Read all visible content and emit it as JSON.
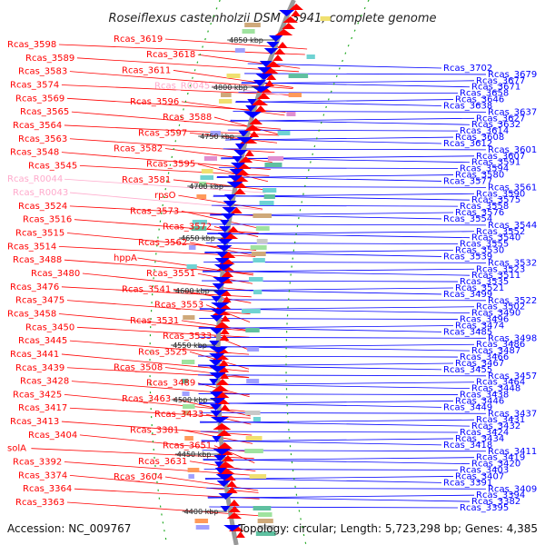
{
  "title": "Roseiflexus castenholzii DSM 13941, complete genome",
  "footer": {
    "accession": "Accession: NC_009767",
    "summary": "Topology: circular; Length: 5,723,298 bp; Genes: 4,385"
  },
  "colors": {
    "forward": "#ff0000",
    "reverse": "#0000ff",
    "rna": "#ffaacc",
    "backbone": "#999999"
  },
  "kbp_ticks": [
    "4850 kbp",
    "4800 kbp",
    "4750 kbp",
    "4700 kbp",
    "4650 kbp",
    "4600 kbp",
    "4550 kbp",
    "4500 kbp",
    "4450 kbp",
    "4400 kbp"
  ],
  "left_labels": [
    {
      "text": "Rcas_3598",
      "type": "cds"
    },
    {
      "text": "Rcas_3589",
      "type": "cds"
    },
    {
      "text": "Rcas_3583",
      "type": "cds"
    },
    {
      "text": "Rcas_3574",
      "type": "cds"
    },
    {
      "text": "Rcas_3569",
      "type": "cds"
    },
    {
      "text": "Rcas_3565",
      "type": "cds"
    },
    {
      "text": "Rcas_3564",
      "type": "cds"
    },
    {
      "text": "Rcas_3563",
      "type": "cds"
    },
    {
      "text": "Rcas_3548",
      "type": "cds"
    },
    {
      "text": "Rcas_3545",
      "type": "cds"
    },
    {
      "text": "Rcas_R0044",
      "type": "rna"
    },
    {
      "text": "Rcas_R0043",
      "type": "rna"
    },
    {
      "text": "Rcas_3524",
      "type": "cds"
    },
    {
      "text": "Rcas_3516",
      "type": "cds"
    },
    {
      "text": "Rcas_3515",
      "type": "cds"
    },
    {
      "text": "Rcas_3514",
      "type": "cds"
    },
    {
      "text": "Rcas_3488",
      "type": "cds"
    },
    {
      "text": "Rcas_3480",
      "type": "cds"
    },
    {
      "text": "Rcas_3476",
      "type": "cds"
    },
    {
      "text": "Rcas_3475",
      "type": "cds"
    },
    {
      "text": "Rcas_3458",
      "type": "cds"
    },
    {
      "text": "Rcas_3450",
      "type": "cds"
    },
    {
      "text": "Rcas_3445",
      "type": "cds"
    },
    {
      "text": "Rcas_3441",
      "type": "cds"
    },
    {
      "text": "Rcas_3439",
      "type": "cds"
    },
    {
      "text": "Rcas_3428",
      "type": "cds"
    },
    {
      "text": "Rcas_3425",
      "type": "cds"
    },
    {
      "text": "Rcas_3417",
      "type": "cds"
    },
    {
      "text": "Rcas_3413",
      "type": "cds"
    },
    {
      "text": "Rcas_3404",
      "type": "cds"
    },
    {
      "text": "solA",
      "type": "cds"
    },
    {
      "text": "Rcas_3392",
      "type": "cds"
    },
    {
      "text": "Rcas_3374",
      "type": "cds"
    },
    {
      "text": "Rcas_3364",
      "type": "cds"
    },
    {
      "text": "Rcas_3363",
      "type": "cds"
    }
  ],
  "mid_labels": [
    {
      "text": "Rcas_3619",
      "type": "cds"
    },
    {
      "text": "Rcas_3618",
      "type": "cds"
    },
    {
      "text": "Rcas_3611",
      "type": "cds"
    },
    {
      "text": "Rcas_R0045",
      "type": "rna"
    },
    {
      "text": "Rcas_3596",
      "type": "cds"
    },
    {
      "text": "Rcas_3588",
      "type": "cds"
    },
    {
      "text": "Rcas_3597",
      "type": "cds"
    },
    {
      "text": "Rcas_3582",
      "type": "cds"
    },
    {
      "text": "Rcas_3595",
      "type": "cds"
    },
    {
      "text": "Rcas_3581",
      "type": "cds"
    },
    {
      "text": "rpsO",
      "type": "cds"
    },
    {
      "text": "Rcas_3573",
      "type": "cds"
    },
    {
      "text": "Rcas_3572",
      "type": "cds"
    },
    {
      "text": "Rcas_3562",
      "type": "cds"
    },
    {
      "text": "hppA",
      "type": "cds"
    },
    {
      "text": "Rcas_3551",
      "type": "cds"
    },
    {
      "text": "Rcas_3541",
      "type": "cds"
    },
    {
      "text": "Rcas_3553",
      "type": "cds"
    },
    {
      "text": "Rcas_3531",
      "type": "cds"
    },
    {
      "text": "Rcas_3533",
      "type": "cds"
    },
    {
      "text": "Rcas_3525",
      "type": "cds"
    },
    {
      "text": "Rcas_3508",
      "type": "cds"
    },
    {
      "text": "Rcas_3489",
      "type": "cds"
    },
    {
      "text": "Rcas_3463",
      "type": "cds"
    },
    {
      "text": "Rcas_3433",
      "type": "cds"
    },
    {
      "text": "Rcas_3381",
      "type": "cds"
    },
    {
      "text": "Rcas_3651",
      "type": "cds"
    },
    {
      "text": "Rcas_3631",
      "type": "cds"
    },
    {
      "text": "Rcas_3604",
      "type": "cds"
    }
  ],
  "right_labels": [
    {
      "text": "Rcas_3702",
      "type": "cds"
    },
    {
      "text": "Rcas_3679",
      "type": "cds"
    },
    {
      "text": "Rcas_3677",
      "type": "cds"
    },
    {
      "text": "Rcas_3671",
      "type": "cds"
    },
    {
      "text": "Rcas_3658",
      "type": "cds"
    },
    {
      "text": "Rcas_3646",
      "type": "cds"
    },
    {
      "text": "Rcas_3638",
      "type": "cds"
    },
    {
      "text": "Rcas_3637",
      "type": "cds"
    },
    {
      "text": "Rcas_3627",
      "type": "cds"
    },
    {
      "text": "Rcas_3632",
      "type": "cds"
    },
    {
      "text": "Rcas_3614",
      "type": "cds"
    },
    {
      "text": "Rcas_3608",
      "type": "cds"
    },
    {
      "text": "Rcas_3612",
      "type": "cds"
    },
    {
      "text": "Rcas_3601",
      "type": "cds"
    },
    {
      "text": "Rcas_3607",
      "type": "cds"
    },
    {
      "text": "Rcas_3591",
      "type": "cds"
    },
    {
      "text": "Rcas_3594",
      "type": "cds"
    },
    {
      "text": "Rcas_3580",
      "type": "cds"
    },
    {
      "text": "Rcas_3577",
      "type": "cds"
    },
    {
      "text": "Rcas_3561",
      "type": "cds"
    },
    {
      "text": "Rcas_3590",
      "type": "cds"
    },
    {
      "text": "Rcas_3575",
      "type": "cds"
    },
    {
      "text": "Rcas_3558",
      "type": "cds"
    },
    {
      "text": "Rcas_3576",
      "type": "cds"
    },
    {
      "text": "Rcas_3554",
      "type": "cds"
    },
    {
      "text": "Rcas_3544",
      "type": "cds"
    },
    {
      "text": "Rcas_3552",
      "type": "cds"
    },
    {
      "text": "Rcas_3540",
      "type": "cds"
    },
    {
      "text": "Rcas_3555",
      "type": "cds"
    },
    {
      "text": "Rcas_3530",
      "type": "cds"
    },
    {
      "text": "Rcas_3539",
      "type": "cds"
    },
    {
      "text": "Rcas_3532",
      "type": "cds"
    },
    {
      "text": "Rcas_3523",
      "type": "cds"
    },
    {
      "text": "Rcas_3511",
      "type": "cds"
    },
    {
      "text": "Rcas_3535",
      "type": "cds"
    },
    {
      "text": "Rcas_3521",
      "type": "cds"
    },
    {
      "text": "Rcas_3499",
      "type": "cds"
    },
    {
      "text": "Rcas_3522",
      "type": "cds"
    },
    {
      "text": "Rcas_3502",
      "type": "cds"
    },
    {
      "text": "Rcas_3490",
      "type": "cds"
    },
    {
      "text": "Rcas_3496",
      "type": "cds"
    },
    {
      "text": "Rcas_3474",
      "type": "cds"
    },
    {
      "text": "Rcas_3485",
      "type": "cds"
    },
    {
      "text": "Rcas_3498",
      "type": "cds"
    },
    {
      "text": "Rcas_3486",
      "type": "cds"
    },
    {
      "text": "Rcas_3487",
      "type": "cds"
    },
    {
      "text": "Rcas_3466",
      "type": "cds"
    },
    {
      "text": "Rcas_3467",
      "type": "cds"
    },
    {
      "text": "Rcas_3455",
      "type": "cds"
    },
    {
      "text": "Rcas_3457",
      "type": "cds"
    },
    {
      "text": "Rcas_3464",
      "type": "cds"
    },
    {
      "text": "Rcas_3448",
      "type": "cds"
    },
    {
      "text": "Rcas_3438",
      "type": "cds"
    },
    {
      "text": "Rcas_3446",
      "type": "cds"
    },
    {
      "text": "Rcas_3449",
      "type": "cds"
    },
    {
      "text": "Rcas_3437",
      "type": "cds"
    },
    {
      "text": "Rcas_3431",
      "type": "cds"
    },
    {
      "text": "Rcas_3432",
      "type": "cds"
    },
    {
      "text": "Rcas_3424",
      "type": "cds"
    },
    {
      "text": "Rcas_3434",
      "type": "cds"
    },
    {
      "text": "Rcas_3418",
      "type": "cds"
    },
    {
      "text": "Rcas_3411",
      "type": "cds"
    },
    {
      "text": "Rcas_3419",
      "type": "cds"
    },
    {
      "text": "Rcas_3420",
      "type": "cds"
    },
    {
      "text": "Rcas_3403",
      "type": "cds"
    },
    {
      "text": "Rcas_3407",
      "type": "cds"
    },
    {
      "text": "Rcas_3391",
      "type": "cds"
    },
    {
      "text": "Rcas_3409",
      "type": "cds"
    },
    {
      "text": "Rcas_3394",
      "type": "cds"
    },
    {
      "text": "Rcas_3382",
      "type": "cds"
    },
    {
      "text": "Rcas_3395",
      "type": "cds"
    }
  ]
}
